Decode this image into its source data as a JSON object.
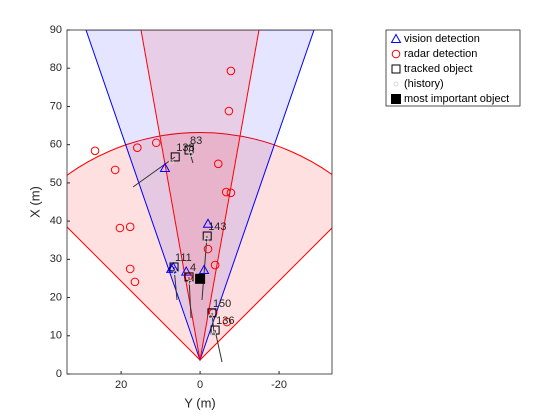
{
  "chart_data": {
    "type": "scatter",
    "xlabel": "Y (m)",
    "ylabel": "X (m)",
    "xlim": [
      33.7,
      -33.4
    ],
    "xticks": [
      20,
      0,
      -20
    ],
    "ylim": [
      0,
      90
    ],
    "yticks": [
      0,
      10,
      20,
      30,
      40,
      50,
      60,
      70,
      80,
      90
    ],
    "series": [
      {
        "name": "vision detection",
        "color": "#0000ff",
        "marker": "triangle",
        "x": [
          8.9,
          7.3,
          6.8,
          3.5,
          -1,
          -2
        ],
        "values": [
          53.9,
          27.5,
          27.9,
          26.8,
          27.2,
          39.3
        ]
      },
      {
        "name": "radar detection",
        "color": "#ff0000",
        "marker": "circle",
        "x": [
          26.6,
          21.5,
          15.9,
          11.1,
          -7.8,
          -7.3,
          -4.6,
          -6.6,
          -7.8,
          20.3,
          17.7,
          17.7,
          16.5,
          -2,
          -3.8,
          3,
          -3.3,
          -6.8
        ],
        "values": [
          58.4,
          53.4,
          59.2,
          60.5,
          79.3,
          68.8,
          55,
          47.6,
          47.4,
          38.2,
          38.5,
          27.5,
          24.1,
          32.7,
          28.5,
          25.4,
          16,
          13.6
        ]
      },
      {
        "name": "tracked object",
        "color": "#000000",
        "marker": "square",
        "x": [
          6.3,
          2.8,
          6.6,
          2.8,
          -1.8,
          -3,
          -3.8
        ],
        "values": [
          56.8,
          58.6,
          28,
          25.4,
          36.1,
          16,
          11.5
        ],
        "labels": [
          "138",
          "83",
          "111",
          "4",
          "143",
          "150",
          "136"
        ]
      },
      {
        "name": "(history)",
        "color": "#d9d9d9",
        "marker": "dot",
        "x": [
          7.3,
          2.3,
          6.2,
          2.5,
          -1.5,
          -2.6,
          -3.4
        ],
        "values": [
          55.5,
          57.5,
          26.5,
          24,
          35,
          15,
          10.5
        ]
      },
      {
        "name": "most important object",
        "color": "#000000",
        "marker": "filled-square",
        "x": [
          0
        ],
        "values": [
          24.9
        ]
      }
    ]
  }
}
